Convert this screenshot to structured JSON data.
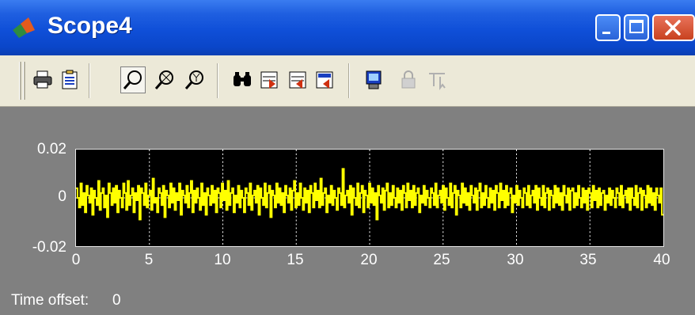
{
  "window": {
    "title": "Scope4"
  },
  "toolbar": {
    "buttons": [
      {
        "icon": "print-icon"
      },
      {
        "icon": "parameters-icon"
      },
      {
        "icon": "zoom-icon",
        "pressed": true
      },
      {
        "icon": "zoom-x-icon"
      },
      {
        "icon": "zoom-y-icon"
      },
      {
        "icon": "autoscale-icon"
      },
      {
        "icon": "save-axes-settings-icon"
      },
      {
        "icon": "restore-axes-settings-icon"
      },
      {
        "icon": "floating-scope-icon"
      },
      {
        "icon": "lock-axes-icon",
        "disabled": true
      },
      {
        "icon": "signal-selection-icon",
        "disabled": true
      }
    ]
  },
  "chart_data": {
    "type": "line",
    "title": "",
    "xlabel": "",
    "ylabel": "",
    "xlim": [
      0,
      40
    ],
    "ylim": [
      -0.02,
      0.02
    ],
    "x_ticks": [
      "0",
      "5",
      "10",
      "15",
      "20",
      "25",
      "30",
      "35",
      "40"
    ],
    "y_ticks": [
      "0.02",
      "0",
      "-0.02"
    ],
    "grid": true,
    "line_color": "#ffff00",
    "background": "#000000",
    "series": [
      {
        "values": [
          0.004,
          0.0,
          -0.004,
          0.006,
          -0.003,
          0.002,
          -0.006,
          0.005,
          0.001,
          -0.002,
          0.004,
          -0.007,
          0.003,
          0.0,
          -0.003,
          0.007,
          -0.005,
          0.002,
          0.004,
          -0.004,
          0.001,
          -0.008,
          0.006,
          0.002,
          -0.003,
          0.004,
          -0.002,
          0.005,
          -0.006,
          0.003,
          0.0,
          -0.004,
          0.006,
          0.002,
          -0.005,
          0.007,
          -0.003,
          0.001,
          0.004,
          -0.006,
          0.002,
          -0.001,
          0.005,
          -0.009,
          0.004,
          0.002,
          -0.003,
          0.006,
          -0.004,
          0.001,
          0.003,
          -0.005,
          0.008,
          -0.002,
          0.0,
          -0.006,
          0.004,
          0.002,
          -0.003,
          0.005,
          -0.008,
          0.003,
          0.001,
          -0.004,
          0.006,
          -0.002,
          0.004,
          -0.005,
          0.002,
          -0.001,
          0.006,
          -0.007,
          0.003,
          0.001,
          -0.002,
          0.005,
          -0.004,
          0.002,
          0.007,
          -0.006,
          0.003,
          -0.002,
          0.004,
          0.0,
          -0.005,
          0.006,
          -0.003,
          0.002,
          -0.007,
          0.004,
          0.001,
          -0.003,
          0.005,
          -0.002,
          0.003,
          -0.006,
          0.004,
          0.002,
          -0.004,
          0.006,
          -0.001,
          0.003,
          -0.005,
          0.007,
          -0.003,
          0.002,
          0.004,
          -0.006,
          0.001,
          -0.002,
          0.005,
          -0.004,
          0.003,
          0.0,
          -0.006,
          0.004,
          0.002,
          -0.003,
          0.006,
          -0.005,
          0.001,
          0.003,
          -0.002,
          0.005,
          -0.007,
          0.004,
          0.0,
          -0.003,
          0.006,
          -0.004,
          0.002,
          0.005,
          -0.008,
          0.003,
          0.001,
          -0.004,
          0.006,
          -0.002,
          0.004,
          -0.003,
          0.002,
          -0.006,
          0.005,
          0.001,
          -0.002,
          0.004,
          -0.005,
          0.003,
          0.007,
          -0.004,
          0.002,
          -0.003,
          0.006,
          0.0,
          -0.005,
          0.004,
          -0.002,
          0.003,
          -0.006,
          0.005,
          0.002,
          -0.004,
          0.006,
          -0.001,
          0.003,
          -0.004,
          0.008,
          -0.003,
          0.002,
          0.004,
          -0.006,
          0.001,
          -0.002,
          0.005,
          -0.003,
          0.003,
          0.0,
          -0.005,
          0.004,
          0.002,
          -0.003,
          0.012,
          -0.004,
          0.001,
          0.003,
          -0.002,
          0.005,
          -0.007,
          0.004,
          0.0,
          -0.003,
          0.006,
          -0.004,
          0.002,
          0.005,
          -0.006,
          0.003,
          0.001,
          -0.004,
          0.006,
          -0.002,
          0.004,
          -0.003,
          0.002,
          -0.009,
          0.005,
          0.001,
          -0.002,
          0.004,
          -0.005,
          0.003,
          0.006,
          -0.004,
          0.002,
          -0.003,
          0.005,
          0.0,
          -0.004,
          0.004,
          -0.002,
          0.003,
          -0.005,
          0.005,
          0.002,
          -0.004,
          0.006,
          -0.001,
          0.003,
          -0.004,
          0.005,
          -0.003,
          0.002,
          0.004,
          -0.006,
          0.001,
          -0.002,
          0.005,
          -0.003,
          0.003,
          0.0,
          -0.004,
          0.004,
          0.002,
          -0.003,
          0.006,
          -0.004,
          0.001,
          0.003,
          -0.002,
          0.005,
          -0.005,
          0.004,
          0.0,
          -0.003,
          0.006,
          -0.004,
          0.002,
          0.005,
          -0.007,
          0.003,
          0.001,
          -0.004,
          0.006,
          -0.002,
          0.004,
          -0.003,
          0.002,
          -0.005,
          0.005,
          0.001,
          -0.002,
          0.004,
          -0.005,
          0.003,
          0.006,
          -0.004,
          0.002,
          -0.003,
          0.005,
          0.0,
          -0.004,
          0.004,
          -0.002,
          0.003,
          -0.005,
          0.005,
          0.002,
          -0.004,
          0.006,
          -0.001,
          0.003,
          -0.004,
          0.005,
          -0.003,
          0.002,
          0.004,
          -0.006,
          0.001,
          -0.002,
          0.005,
          -0.003,
          0.003,
          0.0,
          -0.004,
          0.004,
          0.002,
          -0.003,
          0.005,
          -0.004,
          0.001,
          0.003,
          -0.002,
          0.005,
          -0.005,
          0.004,
          0.0,
          -0.003,
          0.005,
          -0.004,
          0.002,
          0.004,
          -0.005,
          0.003,
          0.001,
          -0.004,
          0.005,
          -0.002,
          0.004,
          -0.003,
          0.002,
          -0.005,
          0.005,
          0.001,
          -0.002,
          0.004,
          -0.005,
          0.003,
          0.004,
          -0.004,
          0.002,
          -0.003,
          0.005,
          0.0,
          -0.004,
          0.004,
          -0.002,
          0.003,
          -0.005,
          0.004,
          0.002,
          -0.004,
          0.005,
          -0.001,
          0.003,
          -0.004,
          0.004,
          -0.003,
          0.002,
          0.003,
          -0.005,
          0.001,
          -0.002,
          0.004,
          -0.003,
          0.003,
          0.0,
          -0.004,
          0.004,
          0.002,
          -0.003,
          0.005,
          -0.004,
          0.001,
          0.003,
          -0.002,
          0.004,
          -0.005,
          0.004,
          0.0,
          -0.003,
          0.005,
          -0.004,
          0.002,
          0.004,
          -0.005,
          0.003,
          0.001,
          -0.004,
          0.005,
          -0.002,
          0.004,
          -0.003,
          0.002,
          -0.005,
          0.004,
          0.001,
          -0.002,
          0.004,
          -0.007
        ]
      }
    ]
  },
  "status": {
    "time_offset_label": "Time offset:",
    "time_offset_value": "0"
  }
}
